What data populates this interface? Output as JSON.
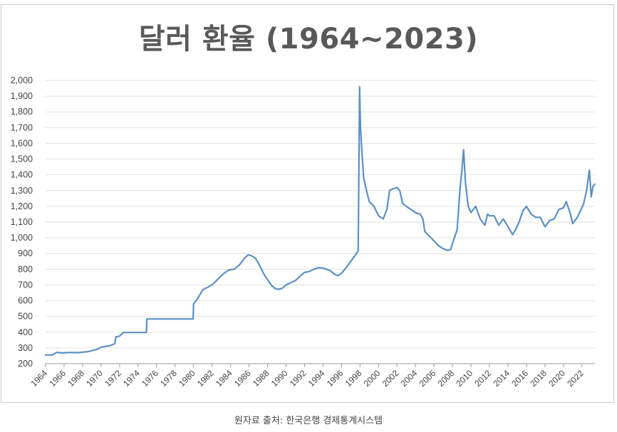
{
  "caption": "원자료 출처: 한국은행 경제통계시스템",
  "chart_data": {
    "type": "line",
    "title": "달러 환율 (1964~2023)",
    "xlabel": "",
    "ylabel": "",
    "xlim": [
      1964,
      2023.4
    ],
    "ylim": [
      200,
      2000
    ],
    "grid": true,
    "legend": "none",
    "line_color": "#5b8fc7",
    "grid_color": "#e2e2e2",
    "y_ticks": [
      "200",
      "300",
      "400",
      "500",
      "600",
      "700",
      "800",
      "900",
      "1,000",
      "1,100",
      "1,200",
      "1,300",
      "1,400",
      "1,500",
      "1,600",
      "1,700",
      "1,800",
      "1,900",
      "2,000"
    ],
    "x_ticks": [
      "1964",
      "1966",
      "1968",
      "1970",
      "1972",
      "1974",
      "1976",
      "1978",
      "1980",
      "1982",
      "1984",
      "1986",
      "1988",
      "1990",
      "1992",
      "1994",
      "1996",
      "1998",
      "2000",
      "2002",
      "2004",
      "2006",
      "2008",
      "2010",
      "2012",
      "2014",
      "2016",
      "2018",
      "2020",
      "2022"
    ],
    "series": [
      {
        "values": [
          [
            1964.0,
            255
          ],
          [
            1964.7,
            255
          ],
          [
            1965.2,
            272
          ],
          [
            1965.8,
            268
          ],
          [
            1966.5,
            271
          ],
          [
            1967.5,
            270
          ],
          [
            1968.5,
            276
          ],
          [
            1969.5,
            290
          ],
          [
            1970.0,
            305
          ],
          [
            1971.0,
            315
          ],
          [
            1971.5,
            328
          ],
          [
            1971.6,
            370
          ],
          [
            1972.0,
            375
          ],
          [
            1972.4,
            398
          ],
          [
            1973.5,
            398
          ],
          [
            1974.9,
            398
          ],
          [
            1974.95,
            484
          ],
          [
            1979.95,
            484
          ],
          [
            1980.0,
            580
          ],
          [
            1980.5,
            620
          ],
          [
            1981.0,
            670
          ],
          [
            1981.5,
            685
          ],
          [
            1982.0,
            700
          ],
          [
            1982.6,
            735
          ],
          [
            1983.2,
            770
          ],
          [
            1983.8,
            795
          ],
          [
            1984.4,
            800
          ],
          [
            1985.0,
            830
          ],
          [
            1985.5,
            870
          ],
          [
            1985.9,
            892
          ],
          [
            1986.3,
            885
          ],
          [
            1986.7,
            870
          ],
          [
            1987.1,
            830
          ],
          [
            1987.6,
            770
          ],
          [
            1988.0,
            735
          ],
          [
            1988.4,
            700
          ],
          [
            1988.8,
            678
          ],
          [
            1989.2,
            672
          ],
          [
            1989.6,
            680
          ],
          [
            1990.0,
            700
          ],
          [
            1990.5,
            715
          ],
          [
            1991.0,
            728
          ],
          [
            1991.5,
            755
          ],
          [
            1992.0,
            780
          ],
          [
            1992.5,
            785
          ],
          [
            1993.0,
            800
          ],
          [
            1993.5,
            810
          ],
          [
            1994.0,
            808
          ],
          [
            1994.4,
            800
          ],
          [
            1994.8,
            790
          ],
          [
            1995.2,
            770
          ],
          [
            1995.6,
            760
          ],
          [
            1996.0,
            775
          ],
          [
            1996.5,
            810
          ],
          [
            1997.0,
            850
          ],
          [
            1997.5,
            890
          ],
          [
            1997.8,
            920
          ],
          [
            1997.85,
            1250
          ],
          [
            1997.95,
            1960
          ],
          [
            1998.05,
            1700
          ],
          [
            1998.2,
            1550
          ],
          [
            1998.4,
            1380
          ],
          [
            1998.7,
            1300
          ],
          [
            1999.0,
            1230
          ],
          [
            1999.5,
            1200
          ],
          [
            2000.0,
            1140
          ],
          [
            2000.5,
            1120
          ],
          [
            2000.9,
            1180
          ],
          [
            2001.2,
            1300
          ],
          [
            2001.5,
            1310
          ],
          [
            2002.0,
            1320
          ],
          [
            2002.3,
            1300
          ],
          [
            2002.6,
            1220
          ],
          [
            2003.0,
            1200
          ],
          [
            2003.5,
            1180
          ],
          [
            2004.0,
            1160
          ],
          [
            2004.5,
            1150
          ],
          [
            2004.8,
            1120
          ],
          [
            2005.0,
            1040
          ],
          [
            2005.5,
            1010
          ],
          [
            2006.0,
            980
          ],
          [
            2006.5,
            950
          ],
          [
            2007.0,
            930
          ],
          [
            2007.5,
            920
          ],
          [
            2007.8,
            925
          ],
          [
            2008.2,
            1000
          ],
          [
            2008.5,
            1050
          ],
          [
            2008.8,
            1300
          ],
          [
            2009.0,
            1420
          ],
          [
            2009.2,
            1560
          ],
          [
            2009.4,
            1350
          ],
          [
            2009.7,
            1200
          ],
          [
            2010.0,
            1160
          ],
          [
            2010.5,
            1200
          ],
          [
            2011.0,
            1120
          ],
          [
            2011.5,
            1080
          ],
          [
            2011.8,
            1150
          ],
          [
            2012.0,
            1140
          ],
          [
            2012.5,
            1140
          ],
          [
            2013.0,
            1080
          ],
          [
            2013.5,
            1120
          ],
          [
            2014.0,
            1070
          ],
          [
            2014.5,
            1020
          ],
          [
            2014.8,
            1050
          ],
          [
            2015.2,
            1100
          ],
          [
            2015.6,
            1170
          ],
          [
            2016.0,
            1200
          ],
          [
            2016.5,
            1150
          ],
          [
            2017.0,
            1130
          ],
          [
            2017.5,
            1130
          ],
          [
            2018.0,
            1070
          ],
          [
            2018.5,
            1110
          ],
          [
            2019.0,
            1120
          ],
          [
            2019.5,
            1180
          ],
          [
            2020.0,
            1190
          ],
          [
            2020.3,
            1230
          ],
          [
            2020.7,
            1160
          ],
          [
            2021.0,
            1090
          ],
          [
            2021.5,
            1130
          ],
          [
            2021.9,
            1180
          ],
          [
            2022.2,
            1220
          ],
          [
            2022.5,
            1300
          ],
          [
            2022.8,
            1430
          ],
          [
            2023.0,
            1260
          ],
          [
            2023.2,
            1330
          ],
          [
            2023.4,
            1340
          ]
        ]
      }
    ]
  }
}
